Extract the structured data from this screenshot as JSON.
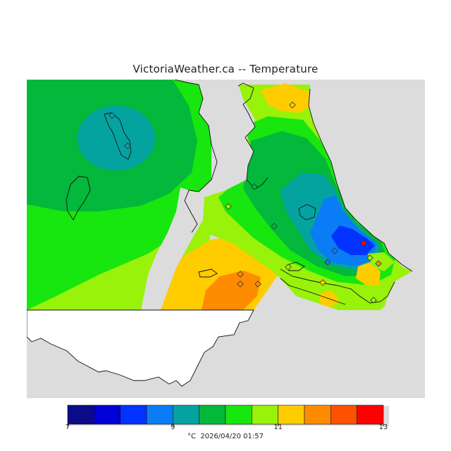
{
  "header": {
    "title": "VictoriaWeather.ca -- Temperature"
  },
  "legend": {
    "unit": "°C",
    "timestamp": "2026/04/20 01:57",
    "tick_labels": [
      "7",
      "9",
      "11",
      "13"
    ],
    "range": [
      7,
      13
    ],
    "colors": [
      "#0b0b8a",
      "#0000d8",
      "#0033ff",
      "#0a7cf5",
      "#04a3a0",
      "#03b83a",
      "#18e60f",
      "#98f20a",
      "#ffcc00",
      "#ff8c00",
      "#ff5000",
      "#ff0000"
    ]
  },
  "map": {
    "land_color": "#ffffff",
    "nodata_color": "#dcdcdc",
    "station_marker": "diamond"
  }
}
